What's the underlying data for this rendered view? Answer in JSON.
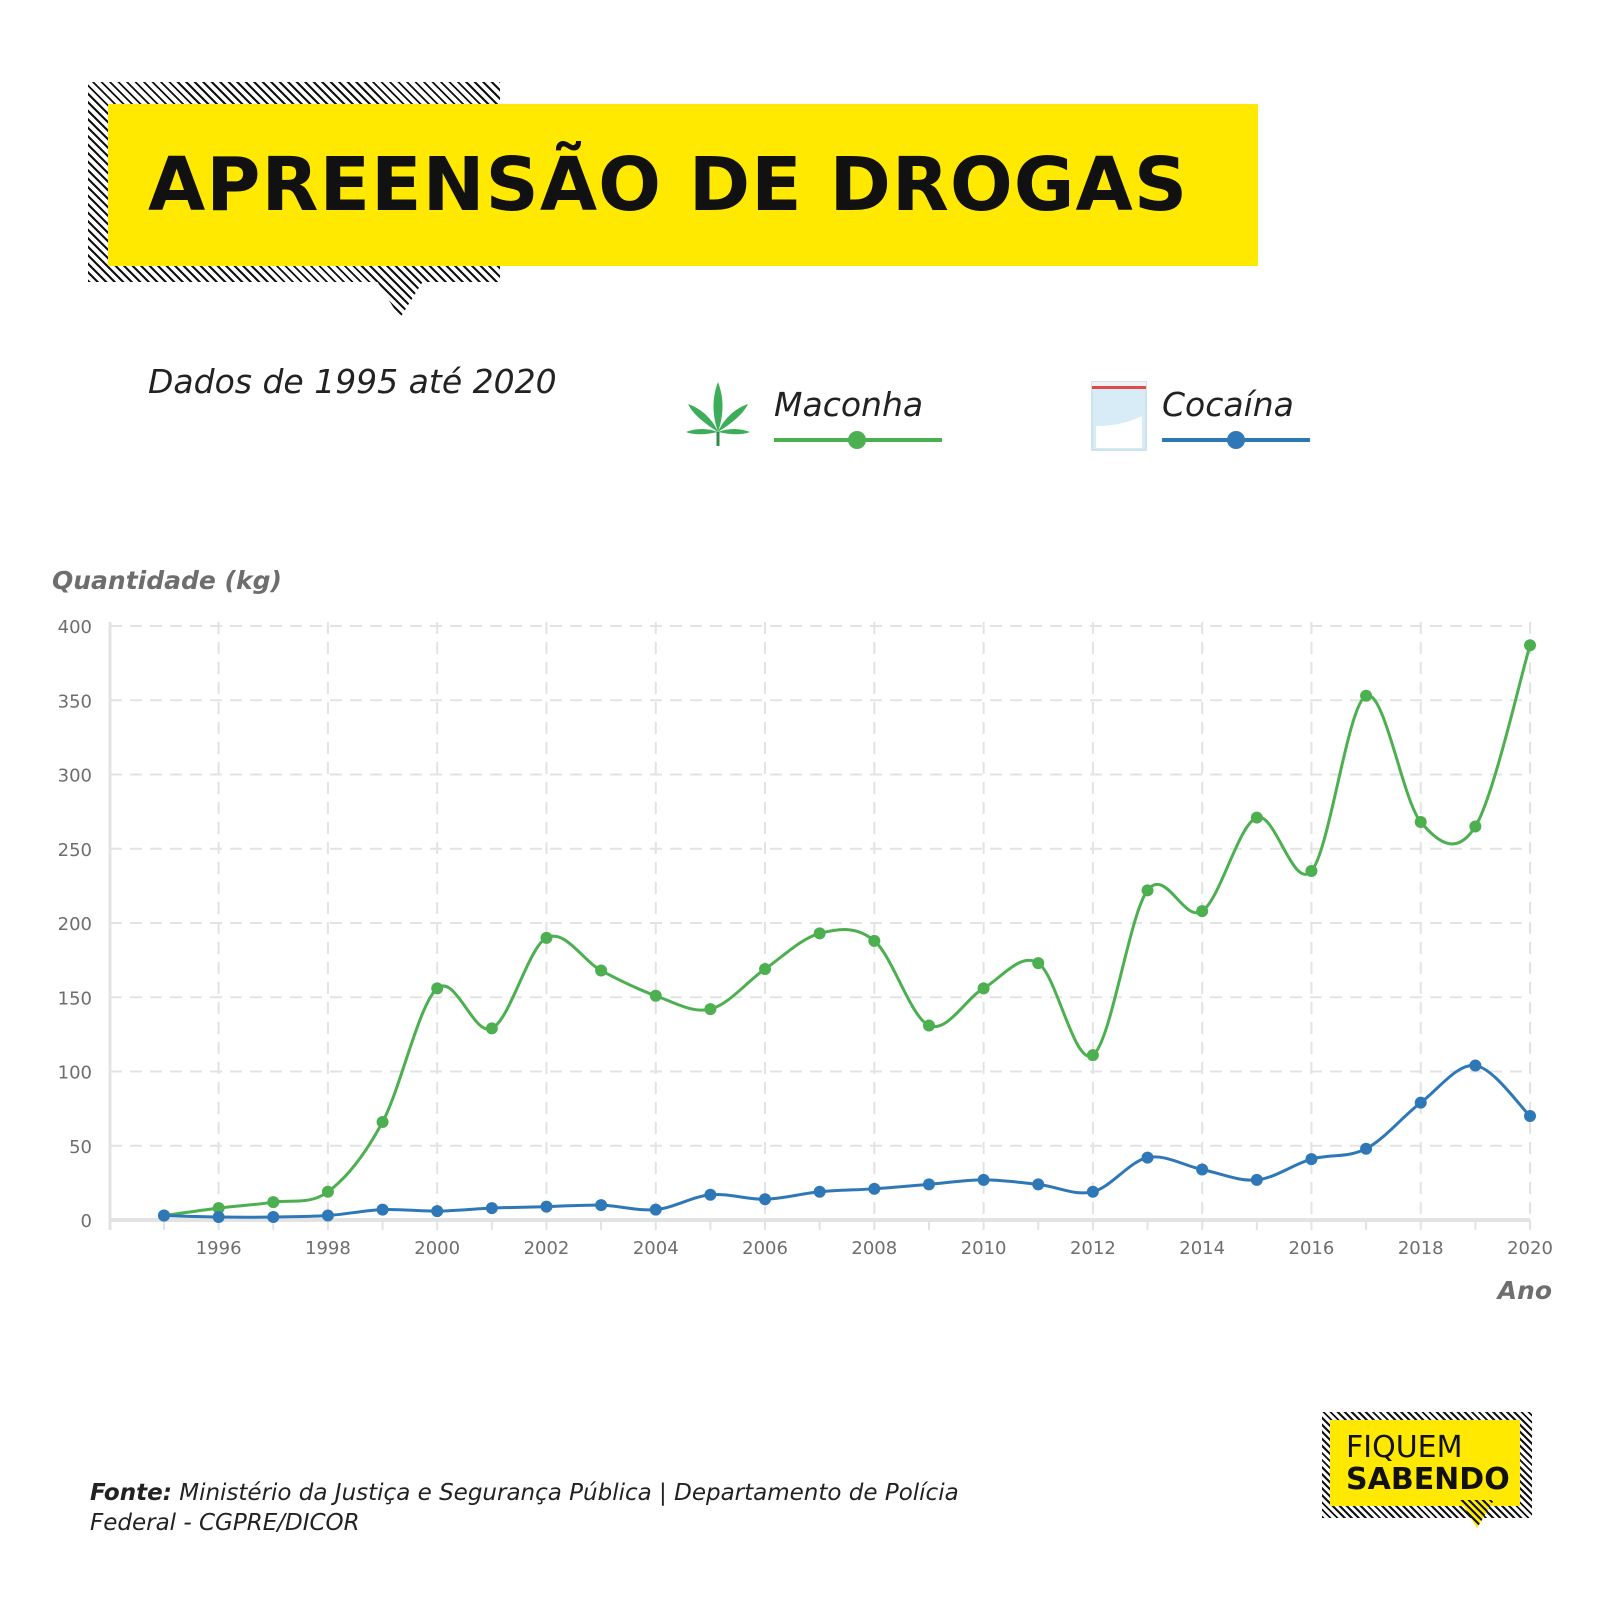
{
  "header": {
    "title": "APREENSÃO DE DROGAS",
    "subtitle": "Dados de 1995 até 2020"
  },
  "legend": {
    "items": [
      {
        "label": "Maconha",
        "color": "#4caf50",
        "icon": "cannabis-leaf-icon"
      },
      {
        "label": "Cocaína",
        "color": "#2f78b7",
        "icon": "powder-bag-icon"
      }
    ]
  },
  "chart_data": {
    "type": "line",
    "x": [
      1995,
      1996,
      1997,
      1998,
      1999,
      2000,
      2001,
      2002,
      2003,
      2004,
      2005,
      2006,
      2007,
      2008,
      2009,
      2010,
      2011,
      2012,
      2013,
      2014,
      2015,
      2016,
      2017,
      2018,
      2019,
      2020
    ],
    "series": [
      {
        "name": "Maconha",
        "color": "#4caf50",
        "values": [
          3,
          8,
          12,
          19,
          66,
          156,
          129,
          190,
          168,
          151,
          142,
          169,
          193,
          188,
          131,
          156,
          173,
          111,
          222,
          208,
          271,
          235,
          353,
          268,
          265,
          387
        ]
      },
      {
        "name": "Cocaína",
        "color": "#2f78b7",
        "values": [
          3,
          2,
          2,
          3,
          7,
          6,
          8,
          9,
          10,
          7,
          17,
          14,
          19,
          21,
          24,
          27,
          24,
          19,
          42,
          34,
          27,
          41,
          48,
          79,
          104,
          70
        ]
      }
    ],
    "ylabel": "Quantidade (kg)",
    "xlabel": "Ano",
    "ylim": [
      0,
      400
    ],
    "yticks": [
      0,
      50,
      100,
      150,
      200,
      250,
      300,
      350,
      400
    ],
    "xticks": [
      1996,
      1998,
      2000,
      2002,
      2004,
      2006,
      2008,
      2010,
      2012,
      2014,
      2016,
      2018,
      2020
    ],
    "xlim": [
      1995,
      2020
    ],
    "grid": true
  },
  "footer": {
    "source_label": "Fonte:",
    "source_text": "Ministério da Justiça e Segurança Pública | Departamento de Polícia Federal - CGPRE/DICOR",
    "logo_line1": "FIQUEM",
    "logo_line2": "SABENDO"
  },
  "colors": {
    "accent": "#ffe900",
    "grid": "#e3e3e3",
    "axis": "#e3e3e3",
    "tick_text": "#6e6e6e"
  }
}
